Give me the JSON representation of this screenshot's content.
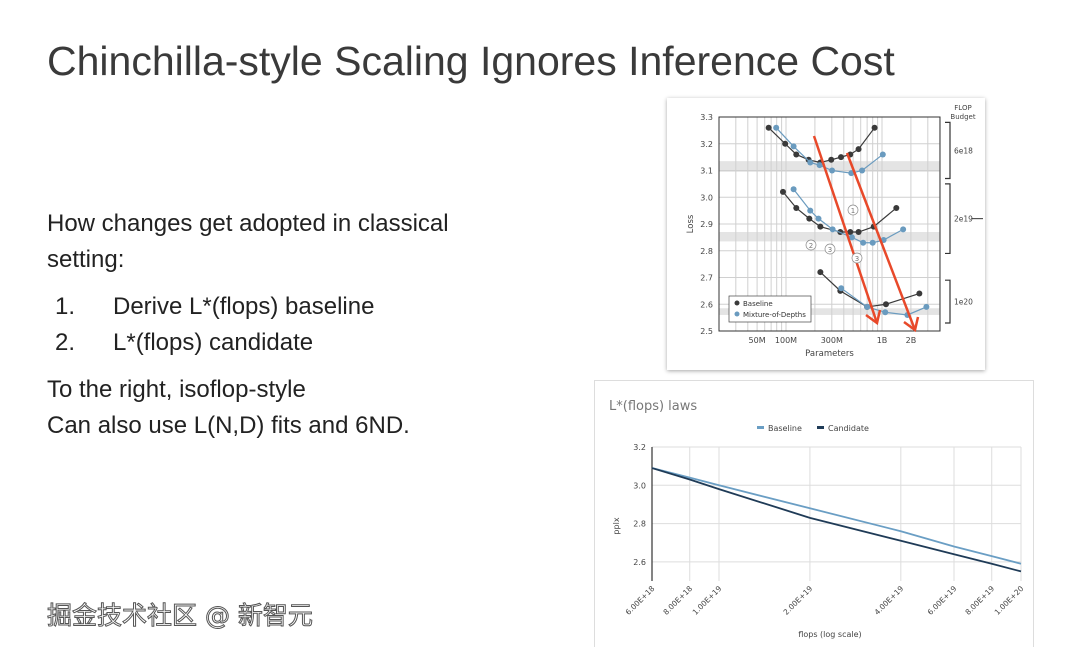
{
  "slide": {
    "title": "Chinchilla-style Scaling Ignores Inference Cost",
    "intro": "How changes get adopted in classical",
    "intro2": "setting:",
    "steps": [
      {
        "n": "1.",
        "text": "Derive L*(flops) baseline"
      },
      {
        "n": "2.",
        "text": "L*(flops) candidate"
      }
    ],
    "note1": "To the right, isoflop-style",
    "note2": "Can also use L(N,D) fits and 6ND.",
    "watermark": "掘金技术社区 @ 新智元"
  },
  "colors": {
    "baseline_dark": "#3a3a3a",
    "mod_blue": "#6a9bbf",
    "arrow": "#e8492a",
    "line_baseline": "#6a9ec4",
    "line_candidate": "#1f3b57"
  },
  "chart_data": [
    {
      "type": "scatter",
      "title": "",
      "xlabel": "Parameters",
      "ylabel": "Loss",
      "xscale": "log",
      "ylim": [
        2.5,
        3.3
      ],
      "xticks": [
        {
          "v": 50000000.0,
          "label": "50M"
        },
        {
          "v": 100000000.0,
          "label": "100M"
        },
        {
          "v": 300000000.0,
          "label": "300M"
        },
        {
          "v": 1000000000.0,
          "label": "1B"
        },
        {
          "v": 2000000000.0,
          "label": "2B"
        }
      ],
      "yticks": [
        "2.5",
        "2.6",
        "2.7",
        "2.8",
        "2.9",
        "3.0",
        "3.1",
        "3.2",
        "3.3"
      ],
      "legend": {
        "position": "bottom-left",
        "entries": [
          "Baseline",
          "Mixture-of-Depths"
        ]
      },
      "budget_title": "FLOP Budget",
      "budgets": [
        {
          "label": "6e18",
          "band": [
            3.095,
            3.135
          ],
          "range": [
            3.07,
            3.28
          ]
        },
        {
          "label": "2e19",
          "band": [
            2.835,
            2.87
          ],
          "range": [
            2.79,
            3.05
          ]
        },
        {
          "label": "1e20",
          "band": [
            2.56,
            2.585
          ],
          "range": [
            2.53,
            2.69
          ]
        }
      ],
      "annotations": [
        "①",
        "②",
        "③",
        "③"
      ],
      "series": [
        {
          "name": "Baseline",
          "budget": "6e18",
          "points": [
            [
              66000000.0,
              3.26
            ],
            [
              98000000.0,
              3.2
            ],
            [
              128000000.0,
              3.16
            ],
            [
              172000000.0,
              3.14
            ],
            [
              228000000.0,
              3.13
            ],
            [
              296000000.0,
              3.14
            ],
            [
              374000000.0,
              3.15
            ],
            [
              467000000.0,
              3.16
            ],
            [
              570000000.0,
              3.18
            ],
            [
              837000000.0,
              3.26
            ]
          ]
        },
        {
          "name": "Mixture-of-Depths",
          "budget": "6e18",
          "points": [
            [
              79000000.0,
              3.26
            ],
            [
              120000000.0,
              3.19
            ],
            [
              179000000.0,
              3.13
            ],
            [
              224000000.0,
              3.12
            ],
            [
              302000000.0,
              3.1
            ],
            [
              479000000.0,
              3.09
            ],
            [
              620000000.0,
              3.1
            ],
            [
              1020000000.0,
              3.16
            ]
          ]
        },
        {
          "name": "Baseline",
          "budget": "2e19",
          "points": [
            [
              93000000.0,
              3.02
            ],
            [
              128000000.0,
              2.96
            ],
            [
              175000000.0,
              2.92
            ],
            [
              228000000.0,
              2.89
            ],
            [
              368000000.0,
              2.87
            ],
            [
              467000000.0,
              2.87
            ],
            [
              570000000.0,
              2.87
            ],
            [
              820000000.0,
              2.89
            ],
            [
              1410000000.0,
              2.96
            ]
          ]
        },
        {
          "name": "Mixture-of-Depths",
          "budget": "2e19",
          "points": [
            [
              120000000.0,
              3.03
            ],
            [
              179000000.0,
              2.95
            ],
            [
              218000000.0,
              2.92
            ],
            [
              306000000.0,
              2.88
            ],
            [
              486000000.0,
              2.85
            ],
            [
              636000000.0,
              2.83
            ],
            [
              800000000.0,
              2.83
            ],
            [
              1040000000.0,
              2.84
            ],
            [
              1660000000.0,
              2.88
            ]
          ]
        },
        {
          "name": "Baseline",
          "budget": "1e20",
          "points": [
            [
              228000000.0,
              2.72
            ],
            [
              368000000.0,
              2.65
            ],
            [
              700000000.0,
              2.59
            ],
            [
              1100000000.0,
              2.6
            ],
            [
              2450000000.0,
              2.64
            ]
          ]
        },
        {
          "name": "Mixture-of-Depths",
          "budget": "1e20",
          "points": [
            [
              376000000.0,
              2.66
            ],
            [
              700000000.0,
              2.59
            ],
            [
              1080000000.0,
              2.57
            ],
            [
              1840000000.0,
              2.56
            ],
            [
              2900000000.0,
              2.59
            ]
          ]
        }
      ]
    },
    {
      "type": "line",
      "title": "L*(flops) laws",
      "xlabel": "flops (log scale)",
      "ylabel": "pplx",
      "xscale": "log",
      "ylim": [
        2.5,
        3.2
      ],
      "x": [
        6e+18,
        8e+18,
        1e+19,
        2e+19,
        4e+19,
        6e+19,
        8e+19,
        1e+20
      ],
      "xtick_labels": [
        "6.00E+18",
        "8.00E+18",
        "1.00E+19",
        "2.00E+19",
        "4.00E+19",
        "6.00E+19",
        "8.00E+19",
        "1.00E+20"
      ],
      "yticks": [
        "2.6",
        "2.8",
        "3.0",
        "3.2"
      ],
      "legend": {
        "position": "top-center",
        "entries": [
          "Baseline",
          "Candidate"
        ]
      },
      "series": [
        {
          "name": "Baseline",
          "values": [
            3.09,
            3.04,
            3.0,
            2.88,
            2.76,
            2.68,
            2.63,
            2.59
          ]
        },
        {
          "name": "Candidate",
          "values": [
            3.09,
            3.03,
            2.98,
            2.83,
            2.71,
            2.64,
            2.59,
            2.55
          ]
        }
      ]
    }
  ]
}
